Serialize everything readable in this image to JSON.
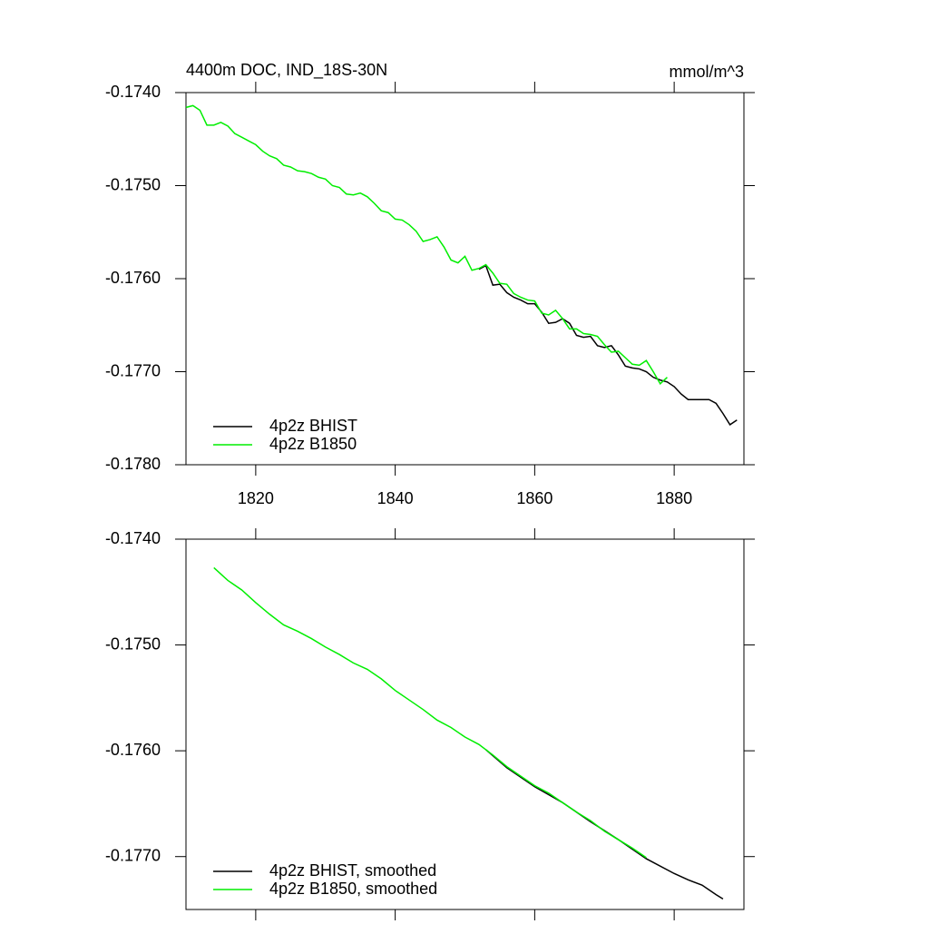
{
  "chart_data": [
    {
      "type": "line",
      "title": "4400m DOC, IND_18S-30N",
      "right_title": "mmol/m^3",
      "xlim": [
        1810,
        1890
      ],
      "xticks": [
        1820,
        1840,
        1860,
        1880
      ],
      "show_xtick_labels": true,
      "ylim": [
        -0.178,
        -0.174
      ],
      "yticks": [
        {
          "value": -0.174,
          "label": "-0.1740"
        },
        {
          "value": -0.175,
          "label": "-0.1750"
        },
        {
          "value": -0.176,
          "label": "-0.1760"
        },
        {
          "value": -0.177,
          "label": "-0.1770"
        },
        {
          "value": -0.178,
          "label": "-0.1780"
        }
      ],
      "legend": "lower left",
      "series": [
        {
          "name": "4p2z BHIST",
          "color": "#000000",
          "x": [
            1852,
            1853,
            1854,
            1855,
            1856,
            1857,
            1858,
            1859,
            1860,
            1861,
            1862,
            1863,
            1864,
            1865,
            1866,
            1867,
            1868,
            1869,
            1870,
            1871,
            1872,
            1873,
            1874,
            1875,
            1876,
            1877,
            1878,
            1879,
            1880,
            1881,
            1882,
            1883,
            1884,
            1885,
            1886,
            1887,
            1888,
            1889
          ],
          "values": [
            -0.1759,
            -0.17586,
            -0.17607,
            -0.17606,
            -0.17615,
            -0.1762,
            -0.17623,
            -0.17627,
            -0.17627,
            -0.17636,
            -0.17648,
            -0.17647,
            -0.17643,
            -0.17648,
            -0.17661,
            -0.17663,
            -0.17662,
            -0.17672,
            -0.17674,
            -0.17672,
            -0.17682,
            -0.17694,
            -0.17696,
            -0.17697,
            -0.177,
            -0.17706,
            -0.17709,
            -0.17711,
            -0.17716,
            -0.17724,
            -0.1773,
            -0.1773,
            -0.1773,
            -0.1773,
            -0.17734,
            -0.17745,
            -0.17757,
            -0.17752
          ]
        },
        {
          "name": "4p2z B1850",
          "color": "#00ee00",
          "x": [
            1810,
            1811,
            1812,
            1813,
            1814,
            1815,
            1816,
            1817,
            1818,
            1819,
            1820,
            1821,
            1822,
            1823,
            1824,
            1825,
            1826,
            1827,
            1828,
            1829,
            1830,
            1831,
            1832,
            1833,
            1834,
            1835,
            1836,
            1837,
            1838,
            1839,
            1840,
            1841,
            1842,
            1843,
            1844,
            1845,
            1846,
            1847,
            1848,
            1849,
            1850,
            1851,
            1852,
            1853,
            1854,
            1855,
            1856,
            1857,
            1858,
            1859,
            1860,
            1861,
            1862,
            1863,
            1864,
            1865,
            1866,
            1867,
            1868,
            1869,
            1870,
            1871,
            1872,
            1873,
            1874,
            1875,
            1876,
            1877,
            1878,
            1879
          ],
          "values": [
            -0.17416,
            -0.17414,
            -0.17419,
            -0.17435,
            -0.17435,
            -0.17432,
            -0.17436,
            -0.17444,
            -0.17448,
            -0.17452,
            -0.17456,
            -0.17463,
            -0.17468,
            -0.17471,
            -0.17478,
            -0.1748,
            -0.17484,
            -0.17485,
            -0.17487,
            -0.17491,
            -0.17493,
            -0.175,
            -0.17502,
            -0.17509,
            -0.1751,
            -0.17508,
            -0.17512,
            -0.17519,
            -0.17527,
            -0.17529,
            -0.17536,
            -0.17537,
            -0.17542,
            -0.17549,
            -0.1756,
            -0.17558,
            -0.17555,
            -0.17566,
            -0.1758,
            -0.17583,
            -0.17576,
            -0.17591,
            -0.17589,
            -0.17585,
            -0.17594,
            -0.17605,
            -0.17606,
            -0.17616,
            -0.1762,
            -0.17623,
            -0.17624,
            -0.17637,
            -0.17639,
            -0.17634,
            -0.17643,
            -0.17654,
            -0.17654,
            -0.17659,
            -0.1766,
            -0.17662,
            -0.17671,
            -0.17679,
            -0.17678,
            -0.17685,
            -0.17692,
            -0.17693,
            -0.17688,
            -0.177,
            -0.17713,
            -0.17706
          ]
        }
      ]
    },
    {
      "type": "line",
      "xlim": [
        1810,
        1890
      ],
      "xticks": [
        1820,
        1840,
        1860,
        1880
      ],
      "show_xtick_labels": false,
      "ylim": [
        -0.1775,
        -0.174
      ],
      "yticks": [
        {
          "value": -0.174,
          "label": "-0.1740"
        },
        {
          "value": -0.175,
          "label": "-0.1750"
        },
        {
          "value": -0.176,
          "label": "-0.1760"
        },
        {
          "value": -0.177,
          "label": "-0.1770"
        }
      ],
      "legend": "lower left",
      "series": [
        {
          "name": "4p2z BHIST, smoothed",
          "color": "#000000",
          "x": [
            1853,
            1856,
            1860,
            1864,
            1868,
            1872,
            1876,
            1880,
            1882,
            1884,
            1886,
            1887
          ],
          "values": [
            -0.17599,
            -0.17616,
            -0.17634,
            -0.17649,
            -0.17667,
            -0.17684,
            -0.17702,
            -0.17716,
            -0.17722,
            -0.17727,
            -0.17736,
            -0.1774
          ]
        },
        {
          "name": "4p2z B1850, smoothed",
          "color": "#00ee00",
          "x": [
            1814,
            1816,
            1818,
            1820,
            1822,
            1824,
            1826,
            1828,
            1830,
            1832,
            1834,
            1836,
            1838,
            1840,
            1842,
            1844,
            1846,
            1848,
            1850,
            1852,
            1854,
            1856,
            1858,
            1860,
            1862,
            1864,
            1866,
            1868,
            1870,
            1872,
            1874,
            1876
          ],
          "values": [
            -0.17427,
            -0.17439,
            -0.17448,
            -0.1746,
            -0.17471,
            -0.17481,
            -0.17487,
            -0.17494,
            -0.17502,
            -0.17509,
            -0.17517,
            -0.17523,
            -0.17532,
            -0.17543,
            -0.17552,
            -0.17561,
            -0.17571,
            -0.17578,
            -0.17587,
            -0.17594,
            -0.17604,
            -0.17615,
            -0.17624,
            -0.17633,
            -0.1764,
            -0.17649,
            -0.17658,
            -0.17666,
            -0.17676,
            -0.17684,
            -0.17692,
            -0.17701
          ]
        }
      ]
    }
  ]
}
